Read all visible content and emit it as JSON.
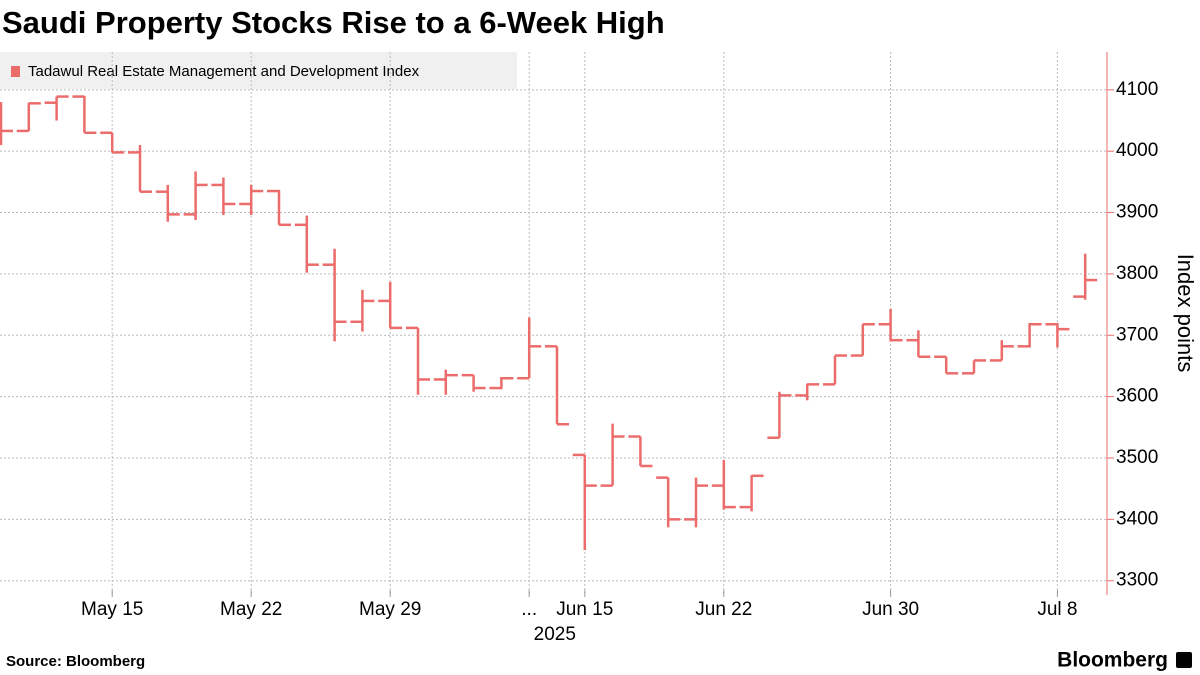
{
  "chart_data": {
    "type": "ohlc",
    "title": "Saudi Property Stocks Rise to a 6-Week High",
    "y_label": "Index points",
    "source": "Source: Bloomberg",
    "brand": "Bloomberg",
    "year_label": "2025",
    "categories": [
      null,
      null,
      null,
      null,
      "May 15",
      null,
      null,
      null,
      null,
      "May 22",
      null,
      null,
      null,
      null,
      "May 29",
      null,
      null,
      null,
      null,
      "...",
      null,
      "Jun 15",
      null,
      null,
      null,
      null,
      "Jun 22",
      null,
      null,
      null,
      null,
      null,
      "Jun 30",
      null,
      null,
      null,
      null,
      null,
      "Jul 8",
      null
    ],
    "series": [
      {
        "name": "Tadawul Real Estate Management and Development Index",
        "color": "#ec6b6b",
        "open": [
          4075,
          4033,
          4079,
          4089,
          4030,
          3998,
          3934,
          3897,
          3945,
          3914,
          3935,
          3880,
          3815,
          3722,
          3756,
          3712,
          3628,
          3635,
          3614,
          3630,
          3682,
          3505,
          3455,
          3535,
          3468,
          3400,
          3455,
          3420,
          3533,
          3602,
          3620,
          3667,
          3718,
          3692,
          3665,
          3638,
          3659,
          3682,
          3718,
          3763
        ],
        "high": [
          4080,
          4079,
          4089,
          4090,
          4030,
          4010,
          3945,
          3967,
          3957,
          3945,
          3937,
          3895,
          3841,
          3774,
          3787,
          3712,
          3644,
          3635,
          3632,
          3729,
          3682,
          3505,
          3556,
          3535,
          3468,
          3468,
          3497,
          3472,
          3608,
          3621,
          3667,
          3718,
          3743,
          3708,
          3665,
          3659,
          3692,
          3720,
          3720,
          3833
        ],
        "low": [
          4010,
          4033,
          4050,
          4030,
          3998,
          3934,
          3885,
          3888,
          3896,
          3896,
          3880,
          3802,
          3690,
          3706,
          3712,
          3603,
          3603,
          3608,
          3612,
          3630,
          3555,
          3350,
          3455,
          3487,
          3387,
          3387,
          3416,
          3413,
          3533,
          3594,
          3620,
          3667,
          3690,
          3665,
          3638,
          3638,
          3659,
          3680,
          3680,
          3758
        ],
        "close": [
          4033,
          4078,
          4089,
          4030,
          3998,
          3934,
          3897,
          3945,
          3914,
          3935,
          3880,
          3815,
          3722,
          3756,
          3712,
          3628,
          3635,
          3614,
          3630,
          3682,
          3555,
          3455,
          3535,
          3487,
          3400,
          3455,
          3420,
          3471,
          3602,
          3620,
          3667,
          3718,
          3692,
          3665,
          3638,
          3659,
          3682,
          3718,
          3710,
          3790
        ]
      }
    ],
    "ylim": [
      3280,
      4160
    ],
    "yticks": [
      3300,
      3400,
      3500,
      3600,
      3700,
      3800,
      3900,
      4000,
      4100
    ],
    "grid": true,
    "legend": "top-left"
  }
}
